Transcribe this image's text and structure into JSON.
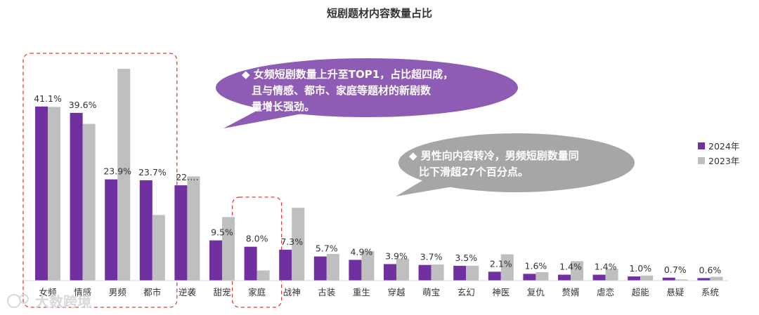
{
  "chart_data": {
    "type": "bar",
    "title": "短剧题材内容数量占比",
    "categories": [
      "女频",
      "情感",
      "男频",
      "都市",
      "逆袭",
      "甜宠",
      "家庭",
      "战神",
      "古装",
      "重生",
      "穿越",
      "萌宝",
      "玄幻",
      "神医",
      "复仇",
      "赘婿",
      "虐恋",
      "超能",
      "悬疑",
      "系统"
    ],
    "series": [
      {
        "name": "2024年",
        "color": "#7030a0",
        "values": [
          41.1,
          39.6,
          23.9,
          23.7,
          22.5,
          9.5,
          8.0,
          7.3,
          5.7,
          4.9,
          3.9,
          3.7,
          3.5,
          2.1,
          1.6,
          1.4,
          1.4,
          1.0,
          0.7,
          0.6
        ]
      },
      {
        "name": "2023年",
        "color": "#bfbfbf",
        "values": [
          41.0,
          37.0,
          50.0,
          15.5,
          24.6,
          15.0,
          2.4,
          17.2,
          6.3,
          7.0,
          5.2,
          3.8,
          3.5,
          6.2,
          2.0,
          4.6,
          2.8,
          1.2,
          0.3,
          0.9
        ]
      }
    ],
    "value_labels": [
      "41.1%",
      "39.6%",
      "23.9%",
      "23.7%",
      "22.…",
      "9.5%",
      "8.0%",
      "7.3%",
      "5.7%",
      "4.9%",
      "3.9%",
      "3.7%",
      "3.5%",
      "2.1%",
      "1.6%",
      "1.4%",
      "1.4%",
      "1.0%",
      "0.7%",
      "0.6%"
    ],
    "ylim": [
      0,
      52
    ],
    "legend_position": "right",
    "grid": false,
    "highlight_groups": [
      [
        "女频",
        "情感",
        "男频",
        "都市"
      ],
      [
        "家庭"
      ]
    ]
  },
  "callouts": [
    {
      "text_lines": [
        "◆  女频短剧数量上升至TOP1，占比超四成，",
        "且与情感、都市、家庭等题材的新剧数",
        "量增长强劲。"
      ],
      "color": "#8e5bb5",
      "text_color": "#ffffff"
    },
    {
      "text_lines": [
        "◆  男性向内容转冷，男频短剧数量同",
        "比下滑超27个百分点。"
      ],
      "color": "#a6a6a6",
      "text_color": "#ffffff"
    }
  ],
  "watermark": "大数跨境"
}
